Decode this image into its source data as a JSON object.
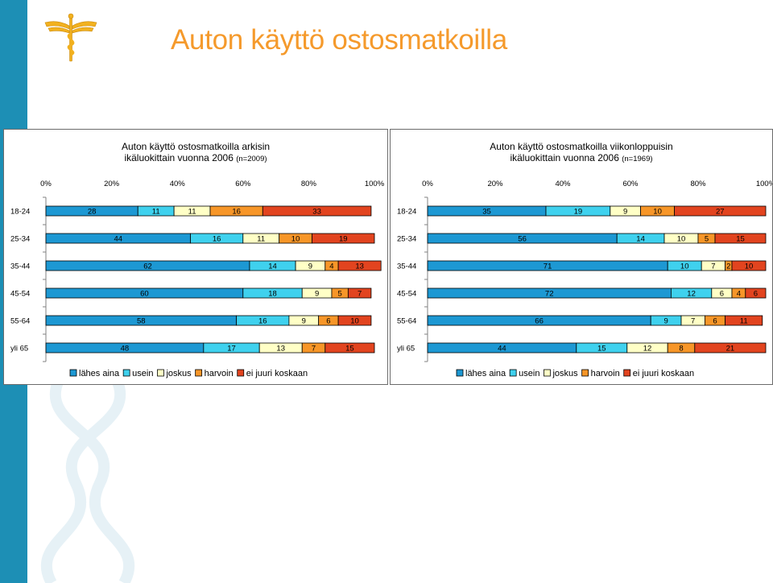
{
  "page_title": "Auton käyttö ostosmatkoilla",
  "colors": {
    "sidebar": "#1d8fb5",
    "title": "#f59a2c",
    "series": [
      "#1d98d3",
      "#3fd1ee",
      "#ffffc6",
      "#f79628",
      "#e2441f"
    ]
  },
  "charts": [
    {
      "title_line1": "Auton käyttö ostosmatkoilla arkisin",
      "title_line2": "ikäluokittain vuonna 2006",
      "title_n": "(n=2009)"
    },
    {
      "title_line1": "Auton käyttö ostosmatkoilla viikonloppuisin",
      "title_line2": "ikäluokittain vuonna 2006",
      "title_n": "(n=1969)"
    }
  ],
  "chart_data": [
    {
      "type": "bar",
      "orientation": "horizontal-stacked-100",
      "title": "Auton käyttö ostosmatkoilla arkisin ikäluokittain vuonna 2006 (n=2009)",
      "categories": [
        "18-24",
        "25-34",
        "35-44",
        "45-54",
        "55-64",
        "yli 65"
      ],
      "ticks": [
        "0%",
        "20%",
        "40%",
        "60%",
        "80%",
        "100%"
      ],
      "xlim": [
        0,
        100
      ],
      "legend_position": "bottom",
      "series": [
        {
          "name": "lähes aina",
          "values": [
            28,
            44,
            62,
            60,
            58,
            48
          ]
        },
        {
          "name": "usein",
          "values": [
            11,
            16,
            14,
            18,
            16,
            17
          ]
        },
        {
          "name": "joskus",
          "values": [
            11,
            11,
            9,
            9,
            9,
            13
          ]
        },
        {
          "name": "harvoin",
          "values": [
            16,
            10,
            4,
            5,
            6,
            7
          ]
        },
        {
          "name": "ei juuri koskaan",
          "values": [
            33,
            19,
            13,
            7,
            10,
            15
          ]
        }
      ]
    },
    {
      "type": "bar",
      "orientation": "horizontal-stacked-100",
      "title": "Auton käyttö ostosmatkoilla viikonloppuisin ikäluokittain vuonna 2006 (n=1969)",
      "categories": [
        "18-24",
        "25-34",
        "35-44",
        "45-54",
        "55-64",
        "yli 65"
      ],
      "ticks": [
        "0%",
        "20%",
        "40%",
        "60%",
        "80%",
        "100%"
      ],
      "xlim": [
        0,
        100
      ],
      "legend_position": "bottom",
      "series": [
        {
          "name": "lähes aina",
          "values": [
            35,
            56,
            71,
            72,
            66,
            44
          ]
        },
        {
          "name": "usein",
          "values": [
            19,
            14,
            10,
            12,
            9,
            15
          ]
        },
        {
          "name": "joskus",
          "values": [
            9,
            10,
            7,
            6,
            7,
            12
          ]
        },
        {
          "name": "harvoin",
          "values": [
            10,
            5,
            2,
            4,
            6,
            8
          ]
        },
        {
          "name": "ei juuri koskaan",
          "values": [
            27,
            15,
            10,
            6,
            11,
            21
          ]
        }
      ]
    }
  ]
}
